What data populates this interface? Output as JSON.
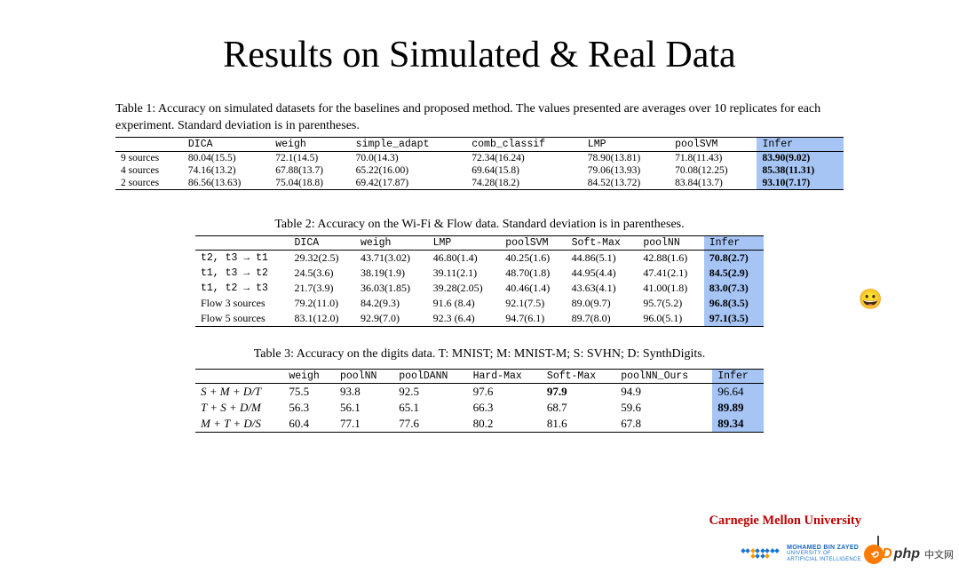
{
  "title": "Results on Simulated & Real Data",
  "table1": {
    "caption": "Table 1: Accuracy on simulated datasets for the baselines and proposed method. The values presented are averages over 10 replicates for each experiment. Standard deviation is in parentheses.",
    "headers": [
      "",
      "DICA",
      "weigh",
      "simple_adapt",
      "comb_classif",
      "LMP",
      "poolSVM",
      "Infer"
    ],
    "highlight_col": 7,
    "rows": [
      {
        "label": "9 sources",
        "cells": [
          "80.04(15.5)",
          "72.1(14.5)",
          "70.0(14.3)",
          "72.34(16.24)",
          "78.90(13.81)",
          "71.8(11.43)",
          "83.90(9.02)"
        ],
        "bold_last": true
      },
      {
        "label": "4 sources",
        "cells": [
          "74.16(13.2)",
          "67.88(13.7)",
          "65.22(16.00)",
          "69.64(15.8)",
          "79.06(13.93)",
          "70.08(12.25)",
          "85.38(11.31)"
        ],
        "bold_last": true
      },
      {
        "label": "2 sources",
        "cells": [
          "86.56(13.63)",
          "75.04(18.8)",
          "69.42(17.87)",
          "74.28(18.2)",
          "84.52(13.72)",
          "83.84(13.7)",
          "93.10(7.17)"
        ],
        "bold_last": true
      }
    ]
  },
  "table2": {
    "caption": "Table 2: Accuracy on the Wi-Fi & Flow data. Standard deviation is in parentheses.",
    "headers": [
      "",
      "DICA",
      "weigh",
      "LMP",
      "poolSVM",
      "Soft-Max",
      "poolNN",
      "Infer"
    ],
    "highlight_col": 7,
    "rows": [
      {
        "label": "t2, t3 → t1",
        "mono_label": true,
        "cells": [
          "29.32(2.5)",
          "43.71(3.02)",
          "46.80(1.4)",
          "40.25(1.6)",
          "44.86(5.1)",
          "42.88(1.6)",
          "70.8(2.7)"
        ],
        "bold_last": true
      },
      {
        "label": "t1, t3 → t2",
        "mono_label": true,
        "cells": [
          "24.5(3.6)",
          "38.19(1.9)",
          "39.11(2.1)",
          "48.70(1.8)",
          "44.95(4.4)",
          "47.41(2.1)",
          "84.5(2.9)"
        ],
        "bold_last": true
      },
      {
        "label": "t1, t2 → t3",
        "mono_label": true,
        "cells": [
          "21.7(3.9)",
          "36.03(1.85)",
          "39.28(2.05)",
          "40.46(1.4)",
          "43.63(4.1)",
          "41.00(1.8)",
          "83.0(7.3)"
        ],
        "bold_last": true
      },
      {
        "label": "Flow 3 sources",
        "cells": [
          "79.2(11.0)",
          "84.2(9.3)",
          "91.6 (8.4)",
          "92.1(7.5)",
          "89.0(9.7)",
          "95.7(5.2)",
          "96.8(3.5)"
        ],
        "bold_last": true
      },
      {
        "label": "Flow 5 sources",
        "cells": [
          "83.1(12.0)",
          "92.9(7.0)",
          "92.3 (6.4)",
          "94.7(6.1)",
          "89.7(8.0)",
          "96.0(5.1)",
          "97.1(3.5)"
        ],
        "bold_last": true
      }
    ]
  },
  "table3": {
    "caption": "Table 3: Accuracy on the digits data. T: MNIST; M: MNIST-M; S: SVHN; D: SynthDigits.",
    "headers": [
      "",
      "weigh",
      "poolNN",
      "poolDANN",
      "Hard-Max",
      "Soft-Max",
      "poolNN_Ours",
      "Infer"
    ],
    "highlight_col": 7,
    "rows": [
      {
        "label": "S + M + D/T",
        "italic_label": true,
        "cells": [
          "75.5",
          "93.8",
          "92.5",
          "97.6",
          "97.9",
          "94.9",
          "96.64"
        ],
        "bold_idx": 4
      },
      {
        "label": "T + S + D/M",
        "italic_label": true,
        "cells": [
          "56.3",
          "56.1",
          "65.1",
          "66.3",
          "68.7",
          "59.6",
          "89.89"
        ],
        "bold_last": true
      },
      {
        "label": "M + T + D/S",
        "italic_label": true,
        "cells": [
          "60.4",
          "77.1",
          "77.6",
          "80.2",
          "81.6",
          "67.8",
          "89.34"
        ],
        "bold_last": true
      }
    ]
  },
  "emoji": "😀",
  "cmu": "Carnegie Mellon University",
  "mbz": {
    "line1": "MOHAMED BIN ZAYED",
    "line2": "UNIVERSITY OF",
    "line3": "ARTIFICIAL INTELLIGENCE"
  },
  "watermark": {
    "brand": "php",
    "suffix": "中文网"
  }
}
